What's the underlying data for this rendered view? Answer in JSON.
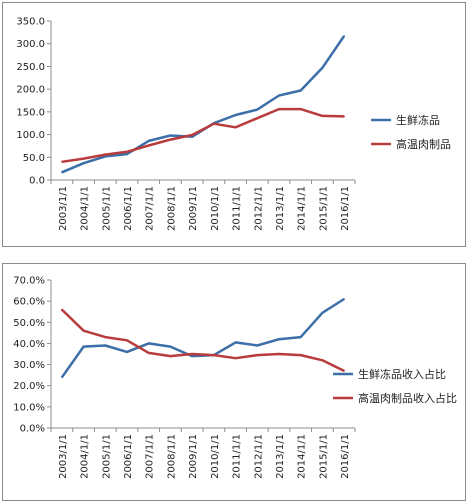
{
  "chart_data": [
    {
      "type": "line",
      "categories": [
        "2003/1/1",
        "2004/1/1",
        "2005/1/1",
        "2006/1/1",
        "2007/1/1",
        "2008/1/1",
        "2009/1/1",
        "2010/1/1",
        "2011/1/1",
        "2012/1/1",
        "2013/1/1",
        "2014/1/1",
        "2015/1/1",
        "2016/1/1"
      ],
      "y_ticks": [
        "0.0",
        "50.0",
        "100.0",
        "150.0",
        "200.0",
        "250.0",
        "300.0",
        "350.0"
      ],
      "ylim": [
        0,
        350
      ],
      "grid": false,
      "legend_position": "right",
      "series": [
        {
          "name": "生鲜冻品",
          "color": "#3c6ea8",
          "values": [
            17,
            37,
            52,
            57,
            86,
            98,
            95,
            125,
            143,
            155,
            186,
            197,
            247,
            317
          ]
        },
        {
          "name": "高温肉制品",
          "color": "#b83c3c",
          "values": [
            40,
            47,
            56,
            62,
            76,
            89,
            99,
            124,
            116,
            136,
            156,
            156,
            141,
            140
          ]
        }
      ]
    },
    {
      "type": "line",
      "categories": [
        "2003/1/1",
        "2004/1/1",
        "2005/1/1",
        "2006/1/1",
        "2007/1/1",
        "2008/1/1",
        "2009/1/1",
        "2010/1/1",
        "2011/1/1",
        "2012/1/1",
        "2013/1/1",
        "2014/1/1",
        "2015/1/1",
        "2016/1/1"
      ],
      "y_ticks": [
        "0.0%",
        "10.0%",
        "20.0%",
        "30.0%",
        "40.0%",
        "50.0%",
        "60.0%",
        "70.0%"
      ],
      "ylim": [
        0,
        70
      ],
      "grid": false,
      "legend_position": "right",
      "series": [
        {
          "name": "生鲜冻品收入占比",
          "color": "#3c6ea8",
          "values": [
            24,
            38.5,
            39,
            36,
            40,
            38.5,
            34,
            34.5,
            40.5,
            39,
            42,
            43,
            54.5,
            61
          ]
        },
        {
          "name": "高温肉制品收入占比",
          "color": "#b83c3c",
          "values": [
            56,
            46,
            43,
            41.5,
            35.5,
            34,
            35,
            34.5,
            33,
            34.5,
            35,
            34.5,
            32,
            27
          ]
        }
      ]
    }
  ]
}
